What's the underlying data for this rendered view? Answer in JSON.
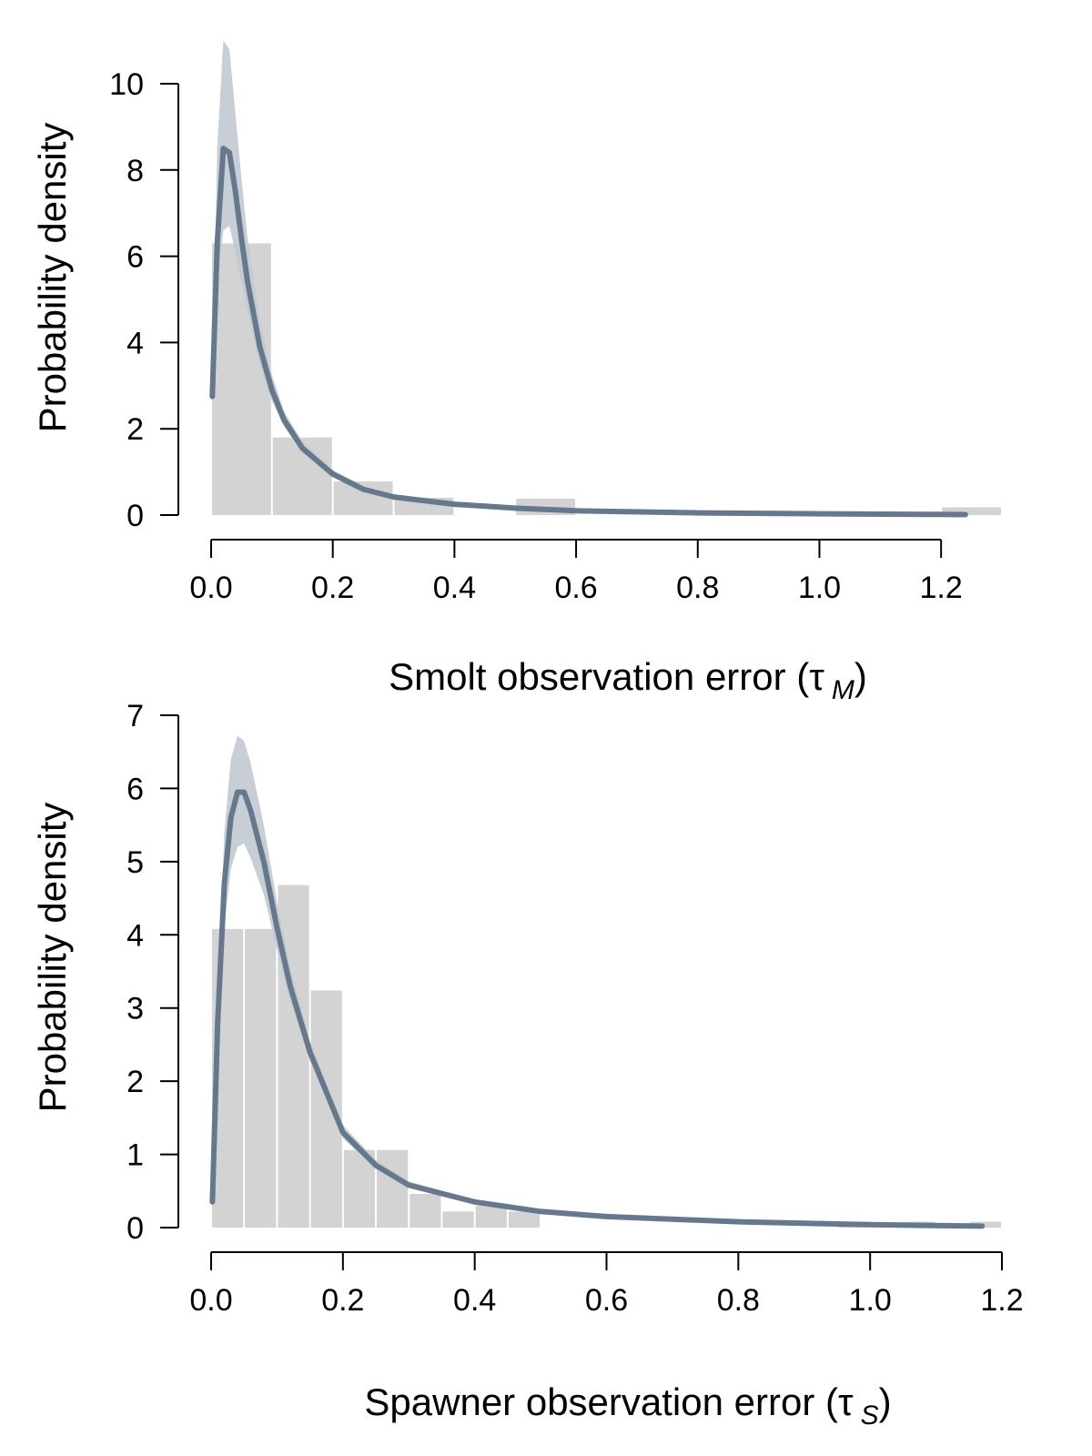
{
  "colors": {
    "histogram": "#d3d3d3",
    "band": "#c2c9d1",
    "curve": "#66788c",
    "axis": "#000000"
  },
  "chart_data": [
    {
      "type": "bar",
      "panel": "top",
      "xlabel_main": "Smolt observation error (",
      "xlabel_symbol": "τ",
      "xlabel_sub": "M",
      "xlabel_close": ")",
      "ylabel": "Probability density",
      "xlim": [
        0,
        1.3
      ],
      "ylim": [
        0,
        10
      ],
      "x_ticks": [
        0.0,
        0.2,
        0.4,
        0.6,
        0.8,
        1.0,
        1.2
      ],
      "x_tick_labels": [
        "0.0",
        "0.2",
        "0.4",
        "0.6",
        "0.8",
        "1.0",
        "1.2"
      ],
      "y_ticks": [
        0,
        2,
        4,
        6,
        8,
        10
      ],
      "y_tick_labels": [
        "0",
        "2",
        "4",
        "6",
        "8",
        "10"
      ],
      "histogram": {
        "bin_width": 0.1,
        "bins": [
          {
            "start": 0.0,
            "value": 6.3
          },
          {
            "start": 0.1,
            "value": 1.8
          },
          {
            "start": 0.2,
            "value": 0.78
          },
          {
            "start": 0.3,
            "value": 0.4
          },
          {
            "start": 0.5,
            "value": 0.38
          },
          {
            "start": 1.2,
            "value": 0.18
          }
        ]
      },
      "curve": {
        "x": [
          0.002,
          0.01,
          0.02,
          0.03,
          0.04,
          0.05,
          0.06,
          0.08,
          0.1,
          0.12,
          0.15,
          0.2,
          0.25,
          0.3,
          0.4,
          0.5,
          0.6,
          0.8,
          1.0,
          1.2,
          1.24
        ],
        "y": [
          2.75,
          6.3,
          8.5,
          8.4,
          7.5,
          6.4,
          5.4,
          3.9,
          2.9,
          2.2,
          1.55,
          0.95,
          0.6,
          0.42,
          0.25,
          0.16,
          0.1,
          0.05,
          0.03,
          0.015,
          0.01
        ],
        "lower": [
          2.7,
          5.2,
          6.6,
          6.7,
          6.1,
          5.4,
          4.7,
          3.5,
          2.65,
          2.05,
          1.45,
          0.88,
          0.55,
          0.38,
          0.22,
          0.14,
          0.09,
          0.04,
          0.025,
          0.012,
          0.008
        ],
        "upper": [
          2.9,
          8.5,
          11.0,
          10.8,
          9.3,
          7.8,
          6.4,
          4.5,
          3.25,
          2.4,
          1.7,
          1.05,
          0.67,
          0.47,
          0.29,
          0.19,
          0.12,
          0.06,
          0.035,
          0.02,
          0.015
        ]
      }
    },
    {
      "type": "bar",
      "panel": "bottom",
      "xlabel_main": "Spawner observation error (",
      "xlabel_symbol": "τ",
      "xlabel_sub": "S",
      "xlabel_close": ")",
      "ylabel": "Probability density",
      "xlim": [
        0,
        1.2
      ],
      "ylim": [
        0,
        7
      ],
      "x_ticks": [
        0.0,
        0.2,
        0.4,
        0.6,
        0.8,
        1.0,
        1.2
      ],
      "x_tick_labels": [
        "0.0",
        "0.2",
        "0.4",
        "0.6",
        "0.8",
        "1.0",
        "1.2"
      ],
      "y_ticks": [
        0,
        1,
        2,
        3,
        4,
        5,
        6,
        7
      ],
      "y_tick_labels": [
        "0",
        "1",
        "2",
        "3",
        "4",
        "5",
        "6",
        "7"
      ],
      "histogram": {
        "bin_width": 0.05,
        "bins": [
          {
            "start": 0.0,
            "value": 4.08
          },
          {
            "start": 0.05,
            "value": 4.08
          },
          {
            "start": 0.1,
            "value": 4.68
          },
          {
            "start": 0.15,
            "value": 3.24
          },
          {
            "start": 0.2,
            "value": 1.06
          },
          {
            "start": 0.25,
            "value": 1.06
          },
          {
            "start": 0.3,
            "value": 0.46
          },
          {
            "start": 0.35,
            "value": 0.22
          },
          {
            "start": 0.4,
            "value": 0.3
          },
          {
            "start": 0.45,
            "value": 0.22
          },
          {
            "start": 0.95,
            "value": 0.08
          },
          {
            "start": 1.05,
            "value": 0.08
          },
          {
            "start": 1.15,
            "value": 0.08
          }
        ]
      },
      "curve": {
        "x": [
          0.002,
          0.01,
          0.02,
          0.03,
          0.04,
          0.05,
          0.06,
          0.08,
          0.1,
          0.12,
          0.15,
          0.2,
          0.25,
          0.3,
          0.4,
          0.5,
          0.6,
          0.8,
          1.0,
          1.17
        ],
        "y": [
          0.35,
          2.8,
          4.7,
          5.6,
          5.95,
          5.95,
          5.7,
          5.0,
          4.1,
          3.3,
          2.4,
          1.3,
          0.85,
          0.58,
          0.35,
          0.22,
          0.15,
          0.08,
          0.04,
          0.02
        ],
        "lower": [
          0.33,
          2.5,
          4.1,
          4.9,
          5.2,
          5.25,
          5.05,
          4.55,
          3.8,
          3.1,
          2.28,
          1.22,
          0.8,
          0.55,
          0.32,
          0.2,
          0.13,
          0.07,
          0.035,
          0.018
        ],
        "upper": [
          0.37,
          3.2,
          5.4,
          6.4,
          6.72,
          6.65,
          6.35,
          5.5,
          4.45,
          3.55,
          2.55,
          1.4,
          0.92,
          0.63,
          0.38,
          0.25,
          0.17,
          0.09,
          0.045,
          0.024
        ]
      }
    }
  ]
}
